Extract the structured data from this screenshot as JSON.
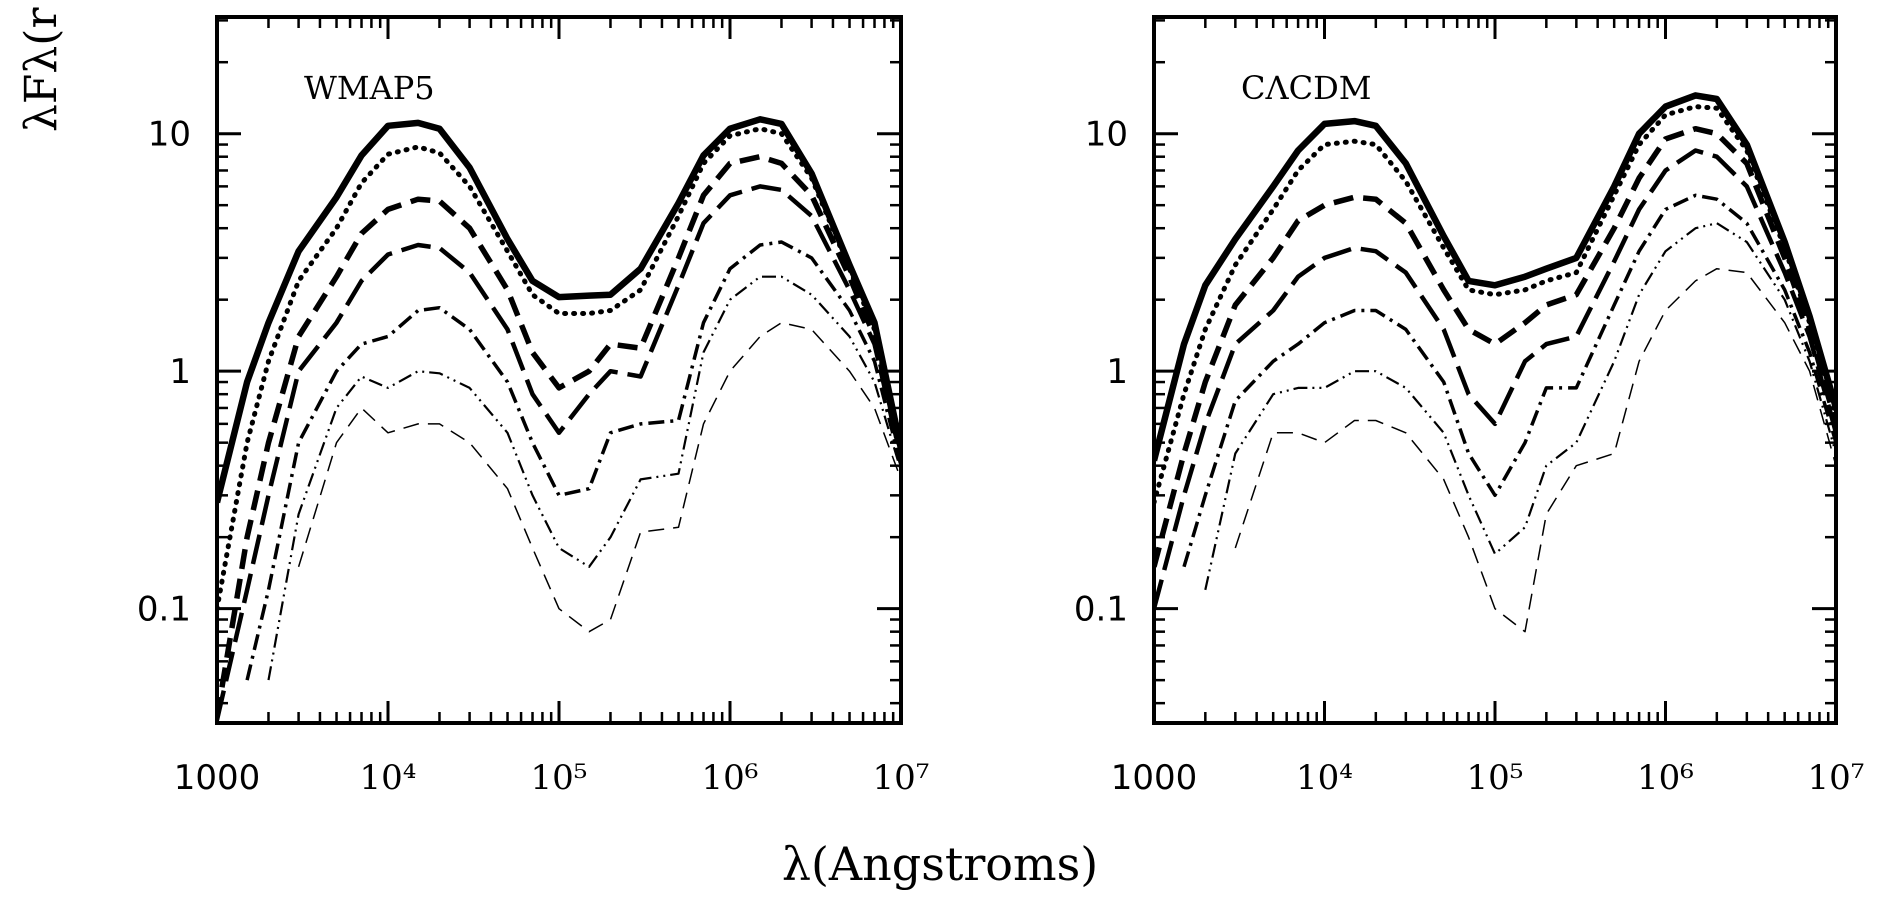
{
  "xlabel": "λ(Angstroms)",
  "ylabel": "λFλ(r",
  "chart_data": [
    {
      "type": "line",
      "title": "WMAP5",
      "xscale": "log",
      "yscale": "log",
      "minor_ticks": true,
      "xlim": [
        1000,
        10000000
      ],
      "ylim": [
        0.033,
        31
      ],
      "xticks": [
        1000,
        {
          "value": 10000,
          "label": "10⁴"
        },
        {
          "value": 100000,
          "label": "10⁵"
        },
        {
          "value": 1000000,
          "label": "10⁶"
        },
        {
          "value": 10000000,
          "label": "10⁷"
        }
      ],
      "yticks": [
        0.1,
        1,
        10
      ],
      "x": [
        1000,
        1500,
        2000,
        3000,
        5000,
        7000,
        10000,
        15000,
        20000,
        30000,
        50000,
        70000,
        100000,
        150000,
        200000,
        300000,
        500000,
        700000,
        1000000,
        1500000,
        2000000,
        3000000,
        5000000,
        7000000,
        10000000
      ],
      "series": [
        {
          "color": "#000000",
          "style": "solid",
          "values": [
            0.28,
            0.9,
            1.6,
            3.2,
            5.4,
            8.1,
            10.8,
            11.1,
            10.5,
            7.2,
            3.6,
            2.4,
            2.05,
            2.08,
            2.1,
            2.7,
            5.1,
            8.1,
            10.5,
            11.5,
            11,
            6.8,
            2.8,
            1.6,
            0.47
          ]
        },
        {
          "color": "#000000",
          "style": "dotted",
          "values": [
            0.1,
            0.5,
            1.1,
            2.4,
            4,
            6.2,
            8.2,
            8.8,
            8.3,
            6,
            3.2,
            2.1,
            1.75,
            1.75,
            1.8,
            2.2,
            4.5,
            7.5,
            9.8,
            10.5,
            10,
            6.5,
            2.7,
            1.5,
            0.45
          ]
        },
        {
          "color": "#000000",
          "style": "dashed",
          "values": [
            0.035,
            0.2,
            0.5,
            1.4,
            2.5,
            3.8,
            4.8,
            5.3,
            5.2,
            4,
            2.2,
            1.2,
            0.85,
            1,
            1.3,
            1.25,
            3,
            5.5,
            7.5,
            8,
            7.5,
            5.5,
            2.5,
            1.4,
            0.45
          ]
        },
        {
          "color": "#000000",
          "style": "long-dashed",
          "values": [
            0.034,
            0.12,
            0.3,
            1,
            1.6,
            2.4,
            3.1,
            3.4,
            3.3,
            2.6,
            1.5,
            0.8,
            0.55,
            0.8,
            1,
            0.95,
            2.3,
            4.2,
            5.5,
            6,
            5.8,
            4.5,
            2.2,
            1.3,
            0.43
          ]
        },
        {
          "color": "#000000",
          "style": "dash-dot",
          "values": [
            null,
            0.05,
            0.12,
            0.5,
            1.0,
            1.3,
            1.4,
            1.8,
            1.85,
            1.5,
            0.9,
            0.5,
            0.3,
            0.32,
            0.55,
            0.6,
            0.62,
            1.6,
            2.7,
            3.4,
            3.5,
            3.0,
            1.8,
            1.1,
            0.4
          ]
        },
        {
          "color": "#000000",
          "style": "dash-dot-dot",
          "values": [
            null,
            null,
            0.05,
            0.25,
            0.7,
            0.95,
            0.85,
            1.0,
            0.98,
            0.85,
            0.55,
            0.3,
            0.18,
            0.15,
            0.2,
            0.35,
            0.37,
            1.2,
            2.0,
            2.5,
            2.5,
            2.1,
            1.4,
            0.9,
            0.38
          ]
        },
        {
          "color": "#000000",
          "style": "thin-dashed",
          "values": [
            null,
            null,
            null,
            0.15,
            0.5,
            0.7,
            0.55,
            0.6,
            0.6,
            0.5,
            0.32,
            0.18,
            0.1,
            0.08,
            0.09,
            0.21,
            0.22,
            0.6,
            1.0,
            1.4,
            1.6,
            1.5,
            1.0,
            0.7,
            0.35
          ]
        }
      ]
    },
    {
      "type": "line",
      "title": "CΛCDM",
      "xscale": "log",
      "yscale": "log",
      "minor_ticks": true,
      "xlim": [
        1000,
        10000000
      ],
      "ylim": [
        0.033,
        31
      ],
      "xticks": [
        1000,
        {
          "value": 10000,
          "label": "10⁴"
        },
        {
          "value": 100000,
          "label": "10⁵"
        },
        {
          "value": 1000000,
          "label": "10⁶"
        },
        {
          "value": 10000000,
          "label": "10⁷"
        }
      ],
      "yticks": [
        0.1,
        1,
        10
      ],
      "x": [
        1000,
        1500,
        2000,
        3000,
        5000,
        7000,
        10000,
        15000,
        20000,
        30000,
        50000,
        70000,
        100000,
        150000,
        200000,
        300000,
        500000,
        700000,
        1000000,
        1500000,
        2000000,
        3000000,
        5000000,
        7000000,
        10000000
      ],
      "series": [
        {
          "color": "#000000",
          "style": "solid",
          "values": [
            0.42,
            1.3,
            2.3,
            3.6,
            6,
            8.5,
            11,
            11.3,
            10.8,
            7.5,
            3.7,
            2.4,
            2.3,
            2.5,
            2.7,
            3,
            6,
            10,
            13,
            14.5,
            14,
            9,
            3.5,
            1.7,
            0.7
          ]
        },
        {
          "color": "#000000",
          "style": "dotted",
          "values": [
            0.28,
            0.8,
            1.5,
            2.8,
            4.8,
            7,
            9,
            9.3,
            9,
            6.3,
            3.3,
            2.2,
            2.1,
            2.2,
            2.4,
            2.6,
            5.5,
            9,
            12,
            13,
            12.8,
            8.5,
            3.3,
            1.6,
            0.65
          ]
        },
        {
          "color": "#000000",
          "style": "dashed",
          "values": [
            0.15,
            0.45,
            0.9,
            1.9,
            3,
            4.3,
            5,
            5.4,
            5.3,
            4.2,
            2.2,
            1.5,
            1.3,
            1.6,
            1.9,
            2.1,
            4,
            6.5,
            9.5,
            10.5,
            10,
            7.5,
            3,
            1.5,
            0.6
          ]
        },
        {
          "color": "#000000",
          "style": "long-dashed",
          "values": [
            0.1,
            0.3,
            0.6,
            1.3,
            1.8,
            2.5,
            3,
            3.3,
            3.2,
            2.6,
            1.5,
            0.8,
            0.6,
            1.1,
            1.3,
            1.4,
            2.9,
            4.8,
            7,
            8.5,
            8,
            6,
            2.6,
            1.4,
            0.55
          ]
        },
        {
          "color": "#000000",
          "style": "dash-dot",
          "values": [
            null,
            0.15,
            0.3,
            0.75,
            1.1,
            1.3,
            1.6,
            1.8,
            1.8,
            1.5,
            0.9,
            0.45,
            0.3,
            0.5,
            0.85,
            0.85,
            1.9,
            3.2,
            4.8,
            5.5,
            5.3,
            4.2,
            2.2,
            1.2,
            0.5
          ]
        },
        {
          "color": "#000000",
          "style": "dash-dot-dot",
          "values": [
            null,
            null,
            0.12,
            0.45,
            0.8,
            0.85,
            0.85,
            1.0,
            1.0,
            0.85,
            0.55,
            0.3,
            0.17,
            0.22,
            0.4,
            0.5,
            1.1,
            2.1,
            3.2,
            4,
            4.2,
            3.5,
            2,
            1.1,
            0.45
          ]
        },
        {
          "color": "#000000",
          "style": "thin-dashed",
          "values": [
            null,
            null,
            null,
            0.18,
            0.55,
            0.55,
            0.5,
            0.62,
            0.62,
            0.55,
            0.35,
            0.2,
            0.1,
            0.08,
            0.25,
            0.4,
            0.45,
            1.1,
            1.8,
            2.4,
            2.7,
            2.6,
            1.6,
            1.0,
            0.4
          ]
        }
      ]
    }
  ]
}
